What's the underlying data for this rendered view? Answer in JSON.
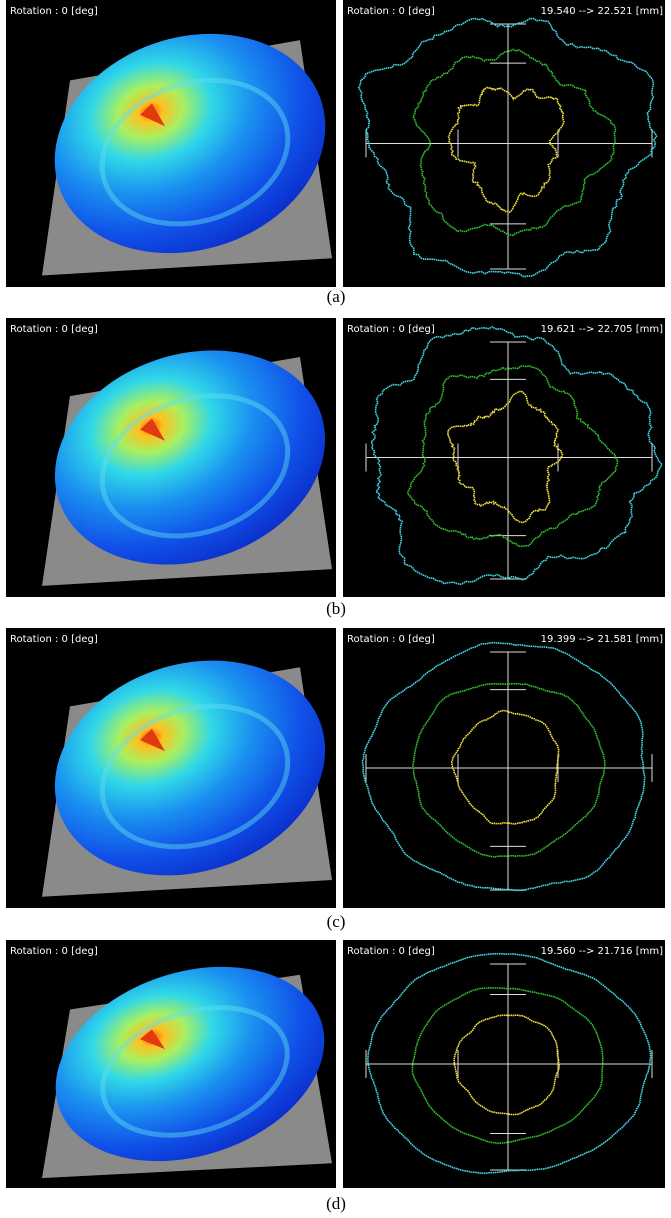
{
  "panels": [
    {
      "left_label": "Rotation : 0 [deg]",
      "right_label": "Rotation : 0 [deg]",
      "range": "19.540 --> 22.521 [mm]",
      "caption": "(a)"
    },
    {
      "left_label": "Rotation : 0 [deg]",
      "right_label": "Rotation : 0 [deg]",
      "range": "19.621 --> 22.705 [mm]",
      "caption": "(b)"
    },
    {
      "left_label": "Rotation : 0 [deg]",
      "right_label": "Rotation : 0 [deg]",
      "range": "19.399 --> 21.581 [mm]",
      "caption": "(c)"
    },
    {
      "left_label": "Rotation : 0 [deg]",
      "right_label": "Rotation : 0 [deg]",
      "range": "19.560 --> 21.716 [mm]",
      "caption": "(d)"
    }
  ]
}
